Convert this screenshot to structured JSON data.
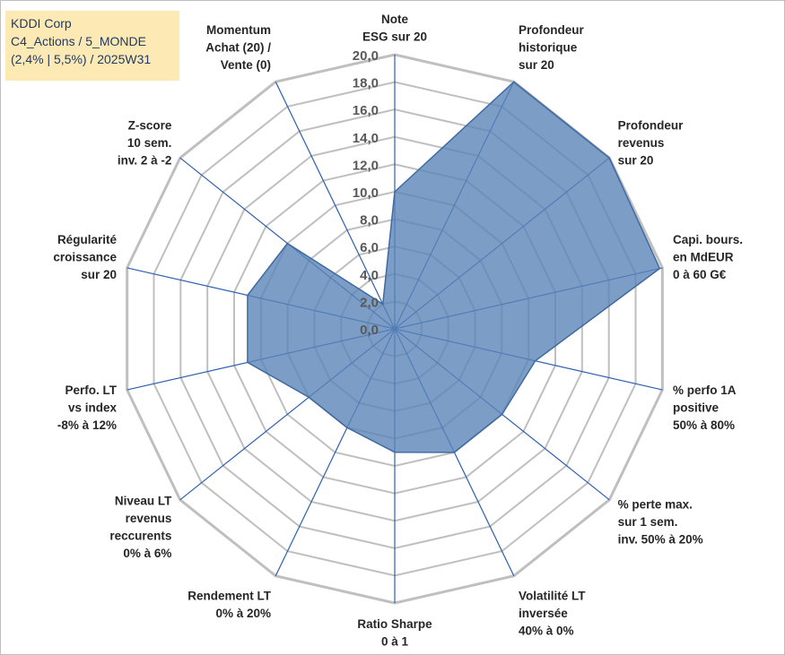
{
  "title_box": {
    "line1": "KDDI Corp",
    "line2": "C4_Actions / 5_MONDE",
    "line3": "(2,4% | 5,5%) / 2025W31"
  },
  "colors": {
    "fill": "#5b84b8",
    "stroke": "#3f6aa1",
    "spoke": "#2f5fb0",
    "grid": "#bfbfbf",
    "title_bg": "#fde9b4",
    "title_text": "#1f3a66"
  },
  "chart_data": {
    "type": "radar",
    "range": [
      0,
      20
    ],
    "step": 2,
    "grid": true,
    "tick_labels": [
      "0,0",
      "2,0",
      "4,0",
      "6,0",
      "8,0",
      "10,0",
      "12,0",
      "14,0",
      "16,0",
      "18,0",
      "20,0"
    ],
    "axes": [
      {
        "label": [
          "Note",
          "ESG sur 20"
        ],
        "value": 10
      },
      {
        "label": [
          "Profondeur",
          "historique",
          "sur 20"
        ],
        "value": 20
      },
      {
        "label": [
          "Profondeur",
          "revenus",
          "sur 20"
        ],
        "value": 20
      },
      {
        "label": [
          "Capi. bours.",
          "en MdEUR",
          "0 à 60 G€"
        ],
        "value": 19.8
      },
      {
        "label": [
          "% perfo 1A",
          "positive",
          "50% à 80%"
        ],
        "value": 10.5
      },
      {
        "label": [
          "% perte max.",
          "sur 1 sem.",
          "inv. 50% à 20%"
        ],
        "value": 10
      },
      {
        "label": [
          "Volatilité LT",
          "inversée",
          "40% à 0%"
        ],
        "value": 10
      },
      {
        "label": [
          "Ratio Sharpe",
          "0 à 1"
        ],
        "value": 9
      },
      {
        "label": [
          "Rendement LT",
          "0% à 20%"
        ],
        "value": 8
      },
      {
        "label": [
          "Niveau LT",
          "revenus",
          "reccurents",
          "0% à 6%"
        ],
        "value": 8
      },
      {
        "label": [
          "Perfo. LT",
          "vs index",
          "-8% à 12%"
        ],
        "value": 11
      },
      {
        "label": [
          "Régularité",
          "croissance",
          "sur 20"
        ],
        "value": 11
      },
      {
        "label": [
          "Z-score",
          "10 sem.",
          "inv. 2 à -2"
        ],
        "value": 10
      },
      {
        "label": [
          "Momentum",
          "Achat (20) /",
          "Vente (0)"
        ],
        "value": 2
      }
    ]
  }
}
